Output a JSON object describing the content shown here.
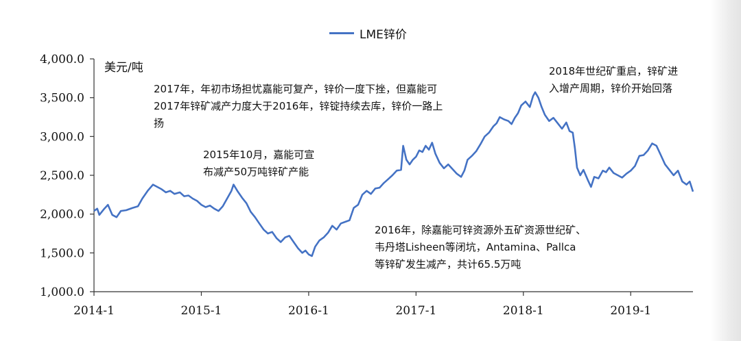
{
  "legend": {
    "series_label": "LME锌价"
  },
  "unit_label": "美元/吨",
  "annotations": {
    "a2015": [
      "2015年10月，嘉能可宣",
      "布减产50万吨锌矿产能"
    ],
    "a2017": [
      "2017年，年初市场担忧嘉能可复产，锌价一度下挫，但嘉能可",
      "2017年锌矿减产力度大于2016年，锌锭持续去库，锌价一路上",
      "扬"
    ],
    "a2018": [
      "2018年世纪矿重启，锌矿进",
      "入增产周期，锌价开始回落"
    ],
    "a2016": [
      "2016年，除嘉能可锌资源外五矿资源世纪矿、",
      "韦丹塔Lisheen等闭坑，Antamina、Pallca",
      "等锌矿发生减产，共计65.5万吨"
    ]
  },
  "chart_data": {
    "type": "line",
    "ylim": [
      1000,
      4000
    ],
    "yticks": [
      1000,
      1500,
      2000,
      2500,
      3000,
      3500,
      4000
    ],
    "ytick_labels": [
      "1,000.0",
      "1,500.0",
      "2,000.0",
      "2,500.0",
      "3,000.0",
      "3,500.0",
      "4,000.0"
    ],
    "xlim": [
      2014.0,
      2019.58
    ],
    "xticks": [
      2014.0,
      2015.0,
      2016.0,
      2017.0,
      2018.0,
      2019.0
    ],
    "xtick_labels": [
      "2014-1",
      "2015-1",
      "2016-1",
      "2017-1",
      "2018-1",
      "2019-1"
    ],
    "line_color": "#4472c4",
    "series": [
      {
        "name": "LME锌价",
        "points": [
          [
            2014.0,
            2040
          ],
          [
            2014.03,
            2070
          ],
          [
            2014.05,
            1990
          ],
          [
            2014.09,
            2060
          ],
          [
            2014.13,
            2120
          ],
          [
            2014.17,
            1990
          ],
          [
            2014.21,
            1960
          ],
          [
            2014.25,
            2040
          ],
          [
            2014.3,
            2050
          ],
          [
            2014.36,
            2080
          ],
          [
            2014.41,
            2100
          ],
          [
            2014.45,
            2200
          ],
          [
            2014.5,
            2300
          ],
          [
            2014.55,
            2380
          ],
          [
            2014.59,
            2350
          ],
          [
            2014.63,
            2320
          ],
          [
            2014.67,
            2280
          ],
          [
            2014.71,
            2300
          ],
          [
            2014.75,
            2260
          ],
          [
            2014.8,
            2280
          ],
          [
            2014.84,
            2230
          ],
          [
            2014.88,
            2240
          ],
          [
            2014.92,
            2200
          ],
          [
            2014.96,
            2170
          ],
          [
            2015.0,
            2120
          ],
          [
            2015.04,
            2090
          ],
          [
            2015.08,
            2110
          ],
          [
            2015.12,
            2070
          ],
          [
            2015.16,
            2040
          ],
          [
            2015.2,
            2100
          ],
          [
            2015.24,
            2200
          ],
          [
            2015.28,
            2300
          ],
          [
            2015.3,
            2380
          ],
          [
            2015.34,
            2290
          ],
          [
            2015.38,
            2210
          ],
          [
            2015.42,
            2140
          ],
          [
            2015.46,
            2030
          ],
          [
            2015.5,
            1960
          ],
          [
            2015.54,
            1880
          ],
          [
            2015.58,
            1800
          ],
          [
            2015.62,
            1750
          ],
          [
            2015.66,
            1770
          ],
          [
            2015.7,
            1690
          ],
          [
            2015.74,
            1640
          ],
          [
            2015.78,
            1700
          ],
          [
            2015.82,
            1720
          ],
          [
            2015.86,
            1640
          ],
          [
            2015.9,
            1560
          ],
          [
            2015.94,
            1500
          ],
          [
            2015.97,
            1530
          ],
          [
            2016.0,
            1480
          ],
          [
            2016.03,
            1460
          ],
          [
            2016.06,
            1580
          ],
          [
            2016.1,
            1660
          ],
          [
            2016.14,
            1700
          ],
          [
            2016.18,
            1760
          ],
          [
            2016.22,
            1850
          ],
          [
            2016.26,
            1800
          ],
          [
            2016.3,
            1880
          ],
          [
            2016.34,
            1900
          ],
          [
            2016.38,
            1920
          ],
          [
            2016.42,
            2080
          ],
          [
            2016.46,
            2120
          ],
          [
            2016.5,
            2250
          ],
          [
            2016.54,
            2300
          ],
          [
            2016.58,
            2260
          ],
          [
            2016.62,
            2330
          ],
          [
            2016.66,
            2340
          ],
          [
            2016.7,
            2400
          ],
          [
            2016.74,
            2450
          ],
          [
            2016.78,
            2500
          ],
          [
            2016.82,
            2560
          ],
          [
            2016.86,
            2570
          ],
          [
            2016.88,
            2880
          ],
          [
            2016.91,
            2700
          ],
          [
            2016.94,
            2640
          ],
          [
            2016.97,
            2700
          ],
          [
            2017.0,
            2740
          ],
          [
            2017.03,
            2820
          ],
          [
            2017.06,
            2800
          ],
          [
            2017.09,
            2880
          ],
          [
            2017.12,
            2830
          ],
          [
            2017.15,
            2920
          ],
          [
            2017.18,
            2780
          ],
          [
            2017.22,
            2660
          ],
          [
            2017.26,
            2590
          ],
          [
            2017.3,
            2640
          ],
          [
            2017.34,
            2580
          ],
          [
            2017.38,
            2520
          ],
          [
            2017.42,
            2480
          ],
          [
            2017.45,
            2560
          ],
          [
            2017.48,
            2700
          ],
          [
            2017.52,
            2750
          ],
          [
            2017.56,
            2810
          ],
          [
            2017.6,
            2900
          ],
          [
            2017.64,
            3000
          ],
          [
            2017.68,
            3050
          ],
          [
            2017.72,
            3130
          ],
          [
            2017.75,
            3170
          ],
          [
            2017.78,
            3250
          ],
          [
            2017.82,
            3220
          ],
          [
            2017.86,
            3200
          ],
          [
            2017.89,
            3160
          ],
          [
            2017.92,
            3240
          ],
          [
            2017.95,
            3300
          ],
          [
            2017.98,
            3400
          ],
          [
            2018.02,
            3450
          ],
          [
            2018.06,
            3380
          ],
          [
            2018.09,
            3520
          ],
          [
            2018.11,
            3570
          ],
          [
            2018.14,
            3500
          ],
          [
            2018.17,
            3380
          ],
          [
            2018.2,
            3280
          ],
          [
            2018.24,
            3200
          ],
          [
            2018.28,
            3240
          ],
          [
            2018.32,
            3170
          ],
          [
            2018.36,
            3100
          ],
          [
            2018.4,
            3180
          ],
          [
            2018.43,
            3070
          ],
          [
            2018.46,
            3050
          ],
          [
            2018.48,
            2850
          ],
          [
            2018.5,
            2600
          ],
          [
            2018.53,
            2500
          ],
          [
            2018.56,
            2570
          ],
          [
            2018.6,
            2440
          ],
          [
            2018.63,
            2350
          ],
          [
            2018.66,
            2480
          ],
          [
            2018.7,
            2460
          ],
          [
            2018.74,
            2560
          ],
          [
            2018.77,
            2540
          ],
          [
            2018.8,
            2600
          ],
          [
            2018.84,
            2530
          ],
          [
            2018.88,
            2500
          ],
          [
            2018.92,
            2470
          ],
          [
            2018.96,
            2520
          ],
          [
            2019.0,
            2560
          ],
          [
            2019.04,
            2620
          ],
          [
            2019.08,
            2750
          ],
          [
            2019.12,
            2760
          ],
          [
            2019.16,
            2820
          ],
          [
            2019.2,
            2910
          ],
          [
            2019.24,
            2880
          ],
          [
            2019.28,
            2760
          ],
          [
            2019.32,
            2640
          ],
          [
            2019.36,
            2570
          ],
          [
            2019.4,
            2500
          ],
          [
            2019.44,
            2560
          ],
          [
            2019.48,
            2420
          ],
          [
            2019.52,
            2380
          ],
          [
            2019.55,
            2420
          ],
          [
            2019.58,
            2290
          ]
        ]
      }
    ]
  }
}
